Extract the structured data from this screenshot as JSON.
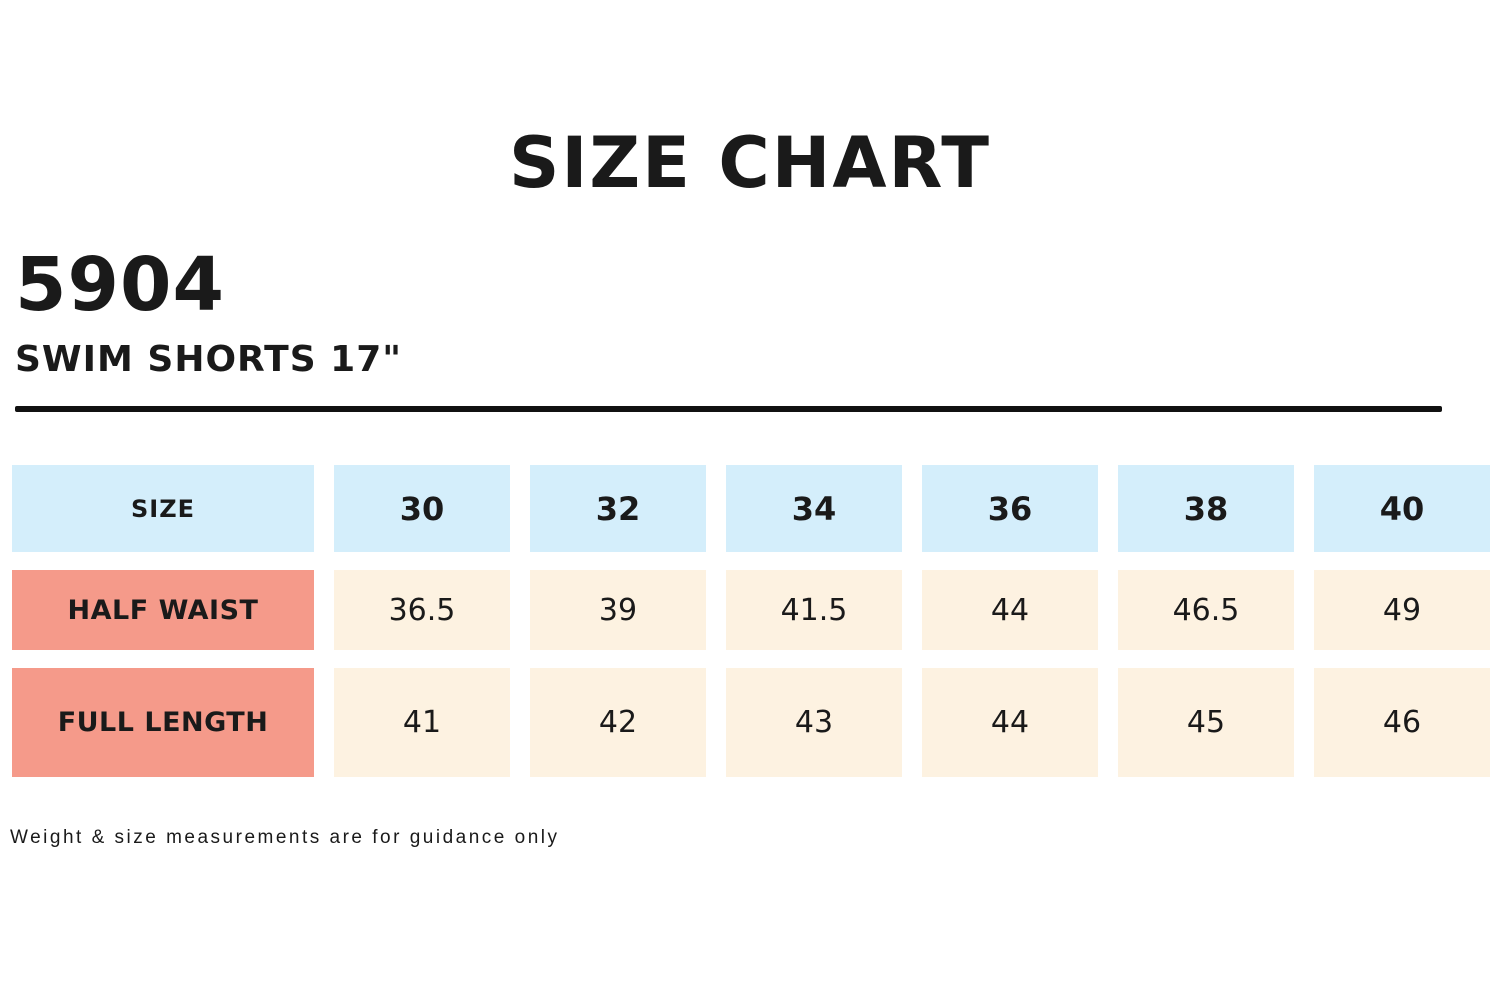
{
  "title": "SIZE CHART",
  "product": {
    "code": "5904",
    "name": "SWIM SHORTS 17\""
  },
  "table": {
    "header_label": "SIZE",
    "sizes": [
      "30",
      "32",
      "34",
      "36",
      "38",
      "40"
    ],
    "rows": [
      {
        "label": "HALF WAIST",
        "values": [
          "36.5",
          "39",
          "41.5",
          "44",
          "46.5",
          "49"
        ]
      },
      {
        "label": "FULL LENGTH",
        "values": [
          "41",
          "42",
          "43",
          "44",
          "45",
          "46"
        ]
      }
    ]
  },
  "footer": {
    "note": "Weight & size measurements are for guidance only"
  },
  "colors": {
    "header_bg": "#d4eefb",
    "label_bg": "#f59a8a",
    "value_bg": "#fdf2e1",
    "text": "#1a1a1a",
    "rule": "#111111"
  },
  "chart_data": {
    "type": "table",
    "title": "SIZE CHART",
    "subtitle": "5904 SWIM SHORTS 17\"",
    "columns": [
      "SIZE",
      "30",
      "32",
      "34",
      "36",
      "38",
      "40"
    ],
    "rows": [
      [
        "HALF WAIST",
        36.5,
        39,
        41.5,
        44,
        46.5,
        49
      ],
      [
        "FULL LENGTH",
        41,
        42,
        43,
        44,
        45,
        46
      ]
    ],
    "note": "Weight & size measurements are for guidance only"
  }
}
